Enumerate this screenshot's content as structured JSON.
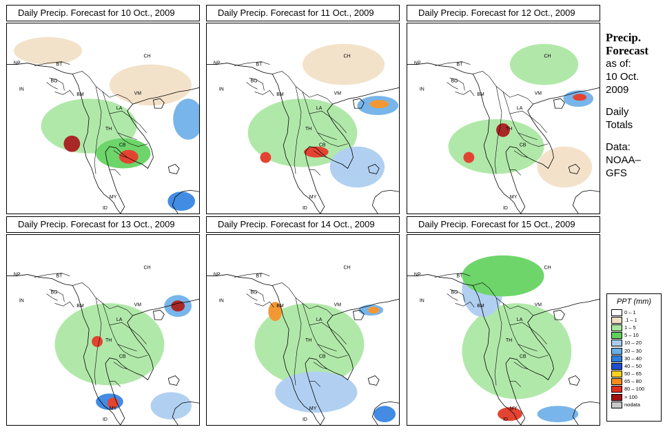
{
  "panels": [
    {
      "title": "Daily Precip. Forecast for  10 Oct., 2009"
    },
    {
      "title": "Daily Precip. Forecast for  11 Oct., 2009"
    },
    {
      "title": "Daily Precip. Forecast for  12 Oct., 2009"
    },
    {
      "title": "Daily Precip. Forecast for  13 Oct., 2009"
    },
    {
      "title": "Daily Precip. Forecast for  14 Oct., 2009"
    },
    {
      "title": "Daily Precip. Forecast for  15 Oct., 2009"
    }
  ],
  "map_labels": {
    "np": "NP",
    "bt": "BT",
    "bg": "BG",
    "in": "IN",
    "bm": "BM",
    "ch": "CH",
    "vm": "VM",
    "la": "LA",
    "th": "TH",
    "cb": "CB",
    "my": "MY",
    "id": "ID"
  },
  "side": {
    "title_line1": "Precip.",
    "title_line2": "Forecast",
    "asof": "as of:",
    "date_line1": "10 Oct.",
    "date_line2": "2009",
    "daily1": "Daily",
    "daily2": "Totals",
    "data1": "Data:",
    "data2": "NOAA–",
    "data3": "GFS"
  },
  "legend": {
    "title": "PPT (mm)",
    "items": [
      {
        "label": "0 – 1",
        "color": "#ffffff"
      },
      {
        "label": ".1 – 1",
        "color": "#f2dfc4"
      },
      {
        "label": "1 – 5",
        "color": "#a8e6a0"
      },
      {
        "label": "5 – 10",
        "color": "#5fd15a"
      },
      {
        "label": "10 – 20",
        "color": "#a9ccf0"
      },
      {
        "label": "20 – 30",
        "color": "#6aaee8"
      },
      {
        "label": "30 – 40",
        "color": "#2f7fe0"
      },
      {
        "label": "40 – 50",
        "color": "#1e4fcf"
      },
      {
        "label": "50 – 65",
        "color": "#f5d020"
      },
      {
        "label": "65 – 80",
        "color": "#f28c1e"
      },
      {
        "label": "80 – 100",
        "color": "#e0301c"
      },
      {
        "label": "> 100",
        "color": "#a01010"
      },
      {
        "label": "nodata",
        "color": "#c8c8c8"
      }
    ]
  }
}
